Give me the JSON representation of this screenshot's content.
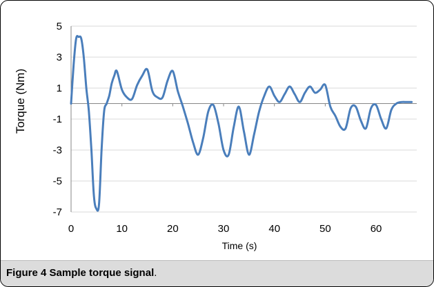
{
  "caption": {
    "label": "Figure 4",
    "text": "Sample torque signal",
    "end": "."
  },
  "chart_data": {
    "type": "line",
    "title": "",
    "xlabel": "Time (s)",
    "ylabel": "Torque (Nm)",
    "xlim": [
      0,
      68
    ],
    "ylim": [
      -7,
      5
    ],
    "xticks": [
      0,
      10,
      20,
      30,
      40,
      50,
      60
    ],
    "yticks": [
      5,
      3,
      1,
      -1,
      -3,
      -5,
      -7
    ],
    "x_tick_labels": [
      "0",
      "10",
      "20",
      "30",
      "40",
      "50",
      "60"
    ],
    "y_tick_labels": [
      "5",
      "3",
      "1",
      "-1",
      "-3",
      "-5",
      "-7"
    ],
    "grid": "horizontal",
    "legend": "none",
    "line_color": "#4a7ebb",
    "series": [
      {
        "x": [
          0,
          0.5,
          1,
          1.5,
          2,
          2.5,
          3,
          3.5,
          4,
          4.5,
          5,
          5.5,
          6,
          6.5,
          7,
          7.5,
          8,
          8.5,
          9,
          10,
          11,
          12,
          13,
          14,
          15,
          16,
          17,
          18,
          19,
          20,
          21,
          22,
          23,
          24,
          25,
          26,
          27,
          28,
          29,
          30,
          31,
          32,
          33,
          34,
          35,
          36,
          37,
          38,
          39,
          40,
          41,
          42,
          43,
          44,
          45,
          46,
          47,
          48,
          49,
          50,
          51,
          52,
          53,
          54,
          55,
          56,
          57,
          58,
          59,
          60,
          61,
          62,
          63,
          64,
          65,
          66,
          67
        ],
        "y": [
          0,
          2.5,
          4.2,
          4.3,
          4.2,
          3,
          1,
          -0.5,
          -3,
          -6,
          -6.8,
          -6.5,
          -3,
          -0.5,
          0,
          0.5,
          1.3,
          1.8,
          2.1,
          0.9,
          0.4,
          0.3,
          1.2,
          1.8,
          2.2,
          0.8,
          0.4,
          0.4,
          1.5,
          2.1,
          0.8,
          -0.2,
          -1.3,
          -2.5,
          -3.3,
          -2.2,
          -0.5,
          -0.1,
          -1.3,
          -3,
          -3.3,
          -1.5,
          -0.2,
          -1.8,
          -3.3,
          -2,
          -0.5,
          0.5,
          1.1,
          0.5,
          0.1,
          0.6,
          1.1,
          0.6,
          0.1,
          0.7,
          1.1,
          0.7,
          0.9,
          1.2,
          -0.2,
          -0.8,
          -1.5,
          -1.6,
          -0.3,
          -0.2,
          -1.1,
          -1.6,
          -0.3,
          -0.1,
          -1,
          -1.6,
          -0.4,
          0,
          0.1,
          0.1,
          0.1
        ]
      }
    ]
  }
}
